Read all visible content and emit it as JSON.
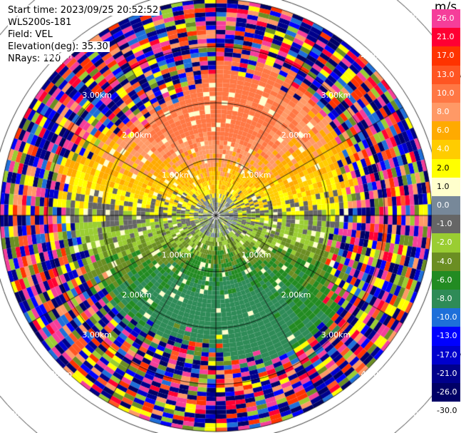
{
  "header": {
    "start_time": "Start time: 2023/09/25 20:52:52",
    "instrument": "WLS200s-181",
    "field": "Field: VEL",
    "elevation": "Elevation(deg): 35.30",
    "nrays": "NRays: 120"
  },
  "chart_data": {
    "type": "heatmap",
    "projection": "polar",
    "range_ring_labels": [
      "1.00km",
      "2.00km",
      "3.00km",
      "4.00km",
      "5.00km"
    ],
    "range_rings_km": [
      1,
      2,
      3,
      4,
      5
    ],
    "max_range_km": 5.2,
    "azimuth_lines_deg": [
      0,
      30,
      60,
      90,
      120,
      150,
      180,
      210,
      240,
      270,
      300,
      330
    ],
    "colorbar": {
      "unit": "m/s",
      "tick_labels": [
        "26.0",
        "21.0",
        "17.0",
        "13.0",
        "10.0",
        "8.0",
        "6.0",
        "4.0",
        "2.0",
        "1.0",
        "0.0",
        "-1.0",
        "-2.0",
        "-4.0",
        "-6.0",
        "-8.0",
        "-10.0",
        "-13.0",
        "-17.0",
        "-21.0",
        "-26.0",
        "-30.0"
      ],
      "colors": [
        "#f53e9a",
        "#ff0033",
        "#ff3300",
        "#ff5522",
        "#ff7744",
        "#ff9966",
        "#ffaa00",
        "#ffcc00",
        "#ffff00",
        "#ffffcc",
        "#778899",
        "#666666",
        "#9acd32",
        "#6b8e23",
        "#228b22",
        "#2e8b57",
        "#1e6fd9",
        "#0000ff",
        "#0000cd",
        "#00008b",
        "#000066",
        "#ffffff"
      ]
    }
  }
}
